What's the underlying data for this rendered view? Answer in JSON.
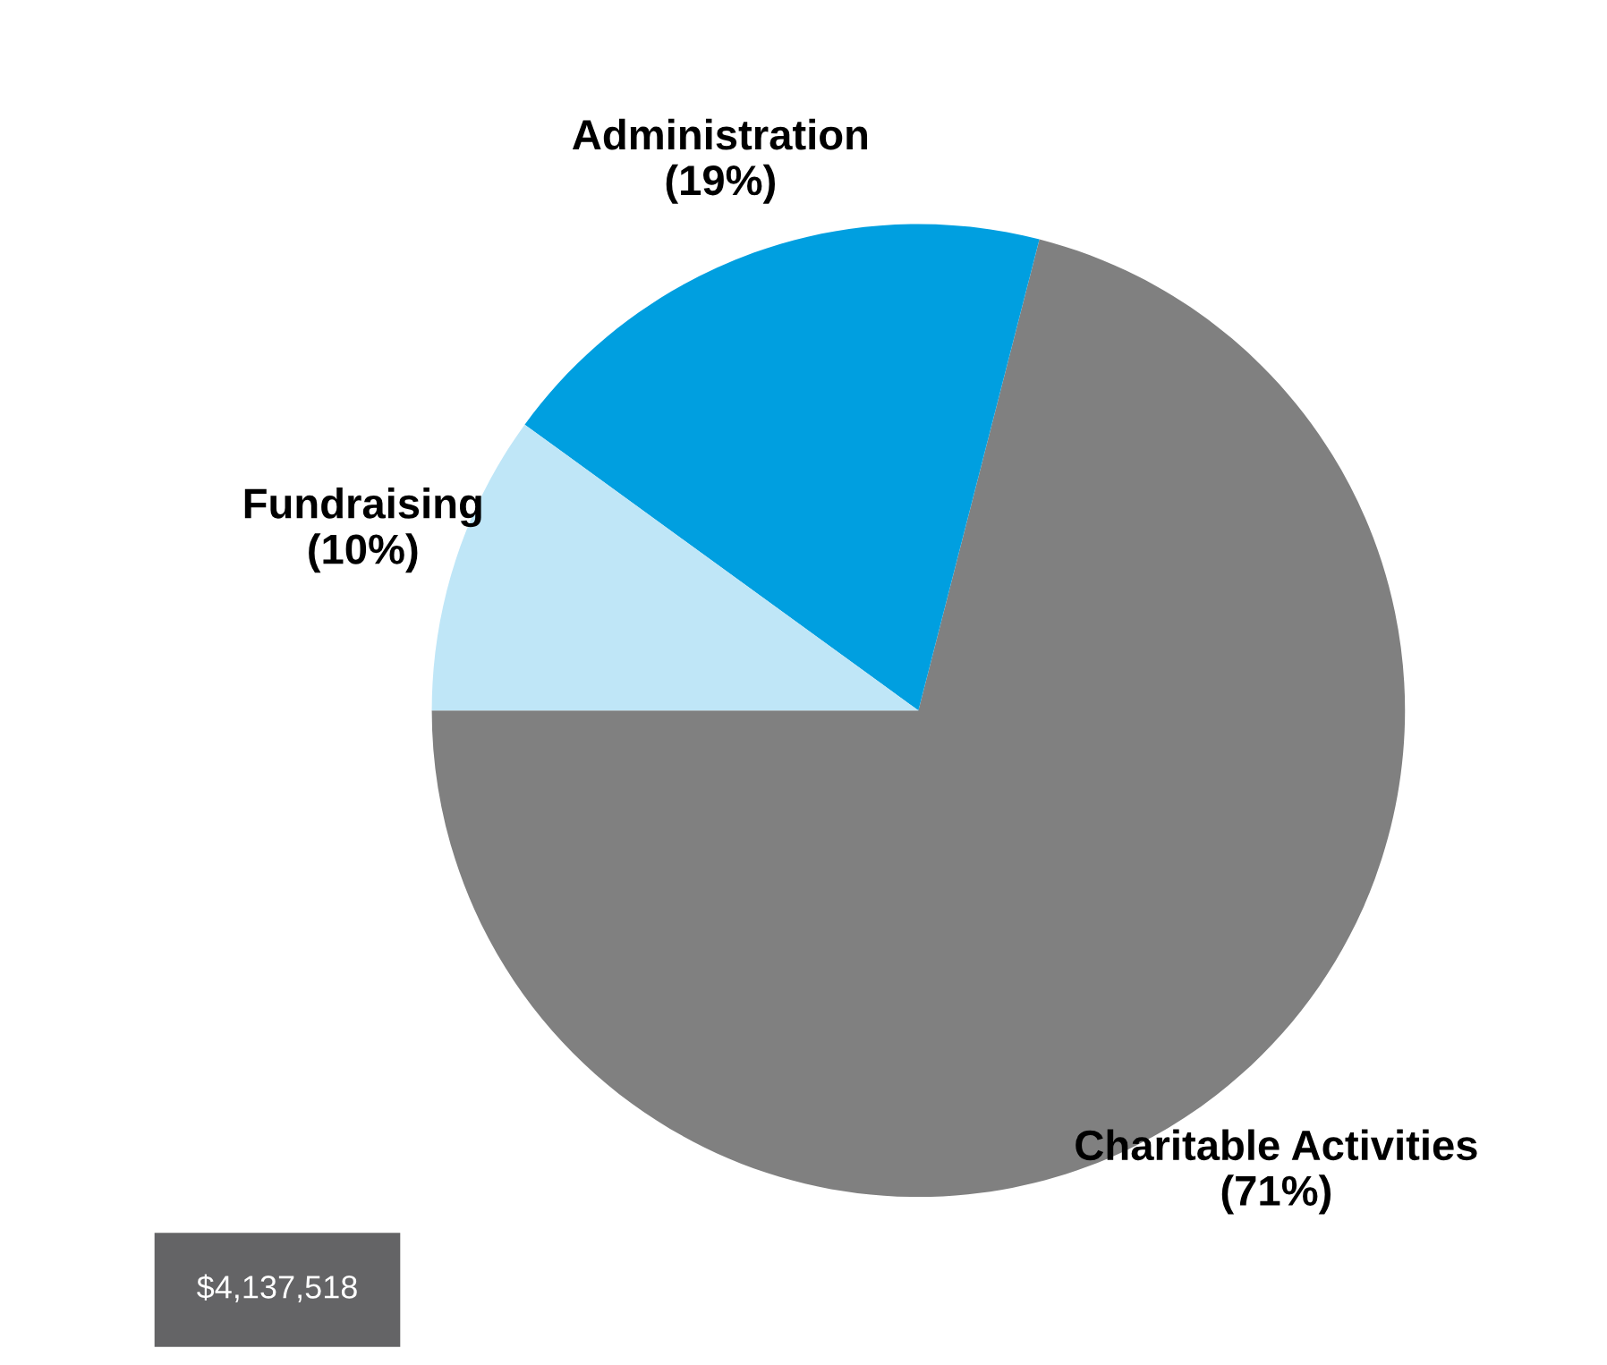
{
  "chart_data": {
    "type": "pie",
    "categories": [
      "Charitable Activities",
      "Administration",
      "Fundraising"
    ],
    "values": [
      71,
      19,
      10
    ],
    "value_labels": [
      "(71%)",
      "(19%)",
      "(10%)"
    ],
    "colors": [
      "#808080",
      "#009fe0",
      "#bfe6f7"
    ],
    "annotations": [
      "$4,137,518"
    ],
    "legend": false
  }
}
